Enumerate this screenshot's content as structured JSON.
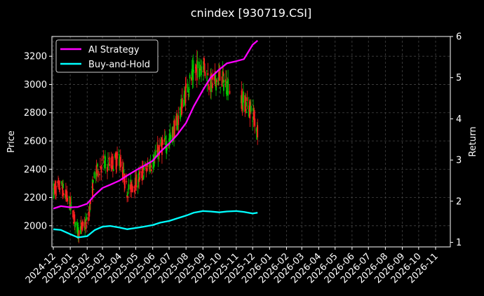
{
  "chart_data": {
    "type": "line",
    "title": "cnindex [930719.CSI]",
    "ylabel_left": "Price",
    "ylabel_right": "Return",
    "xlabel": "",
    "ylim_left": [
      1850,
      3340
    ],
    "ylim_right": [
      0.89,
      6.0
    ],
    "yticks_left": [
      2000,
      2200,
      2400,
      2600,
      2800,
      3000,
      3200
    ],
    "yticks_right": [
      1,
      2,
      3,
      4,
      5,
      6
    ],
    "xticks": [
      "2024-12",
      "2025-01",
      "2025-02",
      "2025-03",
      "2025-04",
      "2025-05",
      "2025-06",
      "2025-07",
      "2025-08",
      "2025-09",
      "2025-10",
      "2025-11",
      "2025-12",
      "2026-01",
      "2026-02",
      "2026-03",
      "2026-04",
      "2026-05",
      "2026-06",
      "2026-07",
      "2026-08",
      "2026-09",
      "2026-10",
      "2026-11"
    ],
    "grid": true,
    "legend_position": "top-left",
    "legend": [
      "AI Strategy",
      "Buy-and-Hold"
    ],
    "series": [
      {
        "name": "AI Strategy",
        "axis": "right",
        "color": "#ff00ff",
        "x": [
          "2024-12-01",
          "2024-12-15",
          "2025-01-01",
          "2025-01-15",
          "2025-02-01",
          "2025-02-15",
          "2025-03-01",
          "2025-03-15",
          "2025-04-01",
          "2025-04-15",
          "2025-05-01",
          "2025-05-15",
          "2025-06-01",
          "2025-06-15",
          "2025-07-01",
          "2025-07-15",
          "2025-08-01",
          "2025-08-15",
          "2025-09-01",
          "2025-09-15",
          "2025-10-01",
          "2025-10-15",
          "2025-11-01",
          "2025-11-15",
          "2025-12-01",
          "2025-12-10"
        ],
        "values": [
          1.82,
          1.88,
          1.85,
          1.86,
          1.94,
          2.15,
          2.32,
          2.4,
          2.5,
          2.62,
          2.75,
          2.85,
          2.98,
          3.2,
          3.4,
          3.6,
          3.9,
          4.3,
          4.7,
          5.0,
          5.2,
          5.35,
          5.4,
          5.45,
          5.8,
          5.9
        ]
      },
      {
        "name": "Buy-and-Hold",
        "axis": "right",
        "color": "#00ffff",
        "x": [
          "2024-12-01",
          "2024-12-15",
          "2025-01-01",
          "2025-01-15",
          "2025-02-01",
          "2025-02-15",
          "2025-03-01",
          "2025-03-15",
          "2025-04-01",
          "2025-04-15",
          "2025-05-01",
          "2025-05-15",
          "2025-06-01",
          "2025-06-15",
          "2025-07-01",
          "2025-07-15",
          "2025-08-01",
          "2025-08-15",
          "2025-09-01",
          "2025-09-15",
          "2025-10-01",
          "2025-10-15",
          "2025-11-01",
          "2025-11-15",
          "2025-12-01",
          "2025-12-10"
        ],
        "values": [
          1.32,
          1.3,
          1.2,
          1.12,
          1.15,
          1.3,
          1.38,
          1.4,
          1.36,
          1.32,
          1.35,
          1.38,
          1.42,
          1.48,
          1.52,
          1.58,
          1.65,
          1.72,
          1.76,
          1.75,
          1.73,
          1.75,
          1.76,
          1.74,
          1.7,
          1.72
        ]
      },
      {
        "name": "Price",
        "axis": "left",
        "type": "candlestick",
        "up_color": "#00c800",
        "down_color": "#ff2020",
        "x": [
          "2024-12-01",
          "2024-12-15",
          "2025-01-01",
          "2025-01-15",
          "2025-02-01",
          "2025-02-15",
          "2025-03-01",
          "2025-03-15",
          "2025-04-01",
          "2025-04-15",
          "2025-05-01",
          "2025-05-15",
          "2025-06-01",
          "2025-06-15",
          "2025-07-01",
          "2025-07-15",
          "2025-08-01",
          "2025-08-15",
          "2025-09-01",
          "2025-09-15",
          "2025-10-01",
          "2025-11-15",
          "2025-12-01",
          "2025-12-10"
        ],
        "values": [
          2250,
          2280,
          2150,
          1960,
          2020,
          2350,
          2440,
          2430,
          2480,
          2250,
          2300,
          2380,
          2450,
          2550,
          2600,
          2720,
          2950,
          3080,
          3150,
          3000,
          3050,
          2880,
          2800,
          2680
        ]
      }
    ]
  }
}
